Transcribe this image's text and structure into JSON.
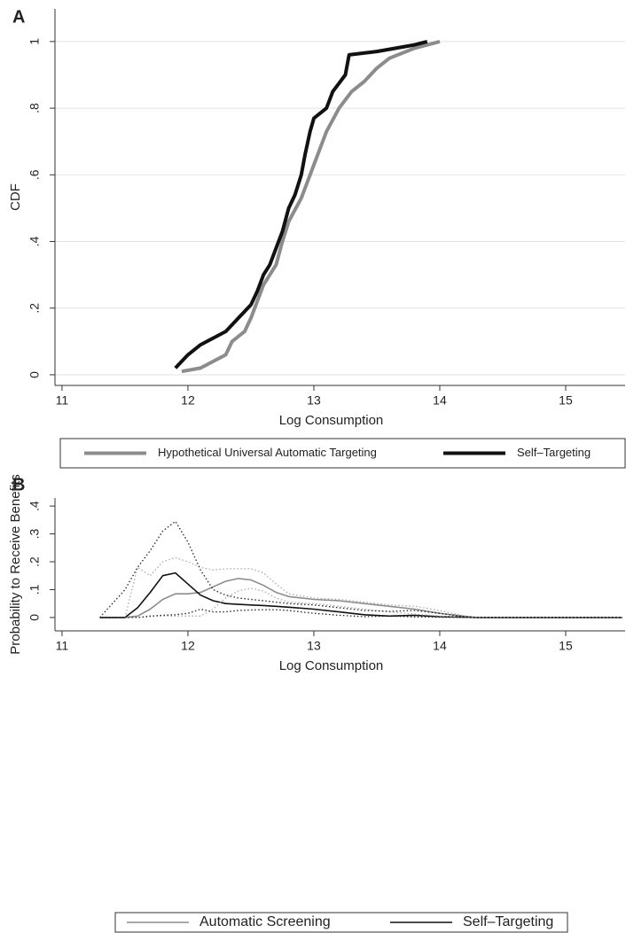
{
  "chart_data": [
    {
      "type": "line",
      "panel": "A",
      "xlabel": "Log Consumption",
      "ylabel": "CDF",
      "xlim": [
        10.944,
        15.472
      ],
      "xticks": [
        11,
        12,
        13,
        14,
        15
      ],
      "ylim": [
        -0.032,
        1.098
      ],
      "yticks": [
        0,
        {
          "value": 0.2,
          "label": ".2"
        },
        {
          "value": 0.4,
          "label": ".4"
        },
        {
          "value": 0.6,
          "label": ".6"
        },
        {
          "value": 0.8,
          "label": ".8"
        },
        1
      ],
      "grid": true,
      "series": [
        {
          "name": "Hypothetical Universal Automatic Targeting",
          "color": "#8c8c8c",
          "style": "solid",
          "x": [
            11.95,
            12.1,
            12.2,
            12.3,
            12.35,
            12.45,
            12.5,
            12.55,
            12.6,
            12.7,
            12.75,
            12.8,
            12.9,
            12.95,
            13.0,
            13.05,
            13.1,
            13.2,
            13.3,
            13.4,
            13.5,
            13.6,
            13.8,
            14.0
          ],
          "values": [
            0.01,
            0.02,
            0.04,
            0.06,
            0.1,
            0.13,
            0.17,
            0.22,
            0.27,
            0.33,
            0.4,
            0.46,
            0.53,
            0.58,
            0.63,
            0.68,
            0.73,
            0.8,
            0.85,
            0.88,
            0.92,
            0.95,
            0.98,
            1.0
          ]
        },
        {
          "name": "Self–Targeting",
          "color": "#111111",
          "style": "solid",
          "x": [
            11.9,
            12.0,
            12.1,
            12.2,
            12.3,
            12.4,
            12.5,
            12.55,
            12.6,
            12.65,
            12.7,
            12.75,
            12.8,
            12.85,
            12.9,
            12.93,
            12.97,
            13.0,
            13.1,
            13.15,
            13.25,
            13.28,
            13.5,
            13.8,
            13.9
          ],
          "values": [
            0.02,
            0.06,
            0.09,
            0.11,
            0.13,
            0.17,
            0.21,
            0.25,
            0.3,
            0.33,
            0.38,
            0.43,
            0.5,
            0.54,
            0.6,
            0.66,
            0.73,
            0.77,
            0.8,
            0.85,
            0.9,
            0.96,
            0.97,
            0.99,
            1.0
          ]
        }
      ]
    },
    {
      "type": "line",
      "panel": "B",
      "xlabel": "Log Consumption",
      "ylabel": "Probability to Receive Benefits",
      "xlim": [
        10.944,
        15.472
      ],
      "xticks": [
        11,
        12,
        13,
        14,
        15
      ],
      "ylim": [
        -0.048,
        0.429
      ],
      "yticks": [
        0,
        {
          "value": 0.1,
          "label": ".1"
        },
        {
          "value": 0.2,
          "label": ".2"
        },
        {
          "value": 0.3,
          "label": ".3"
        },
        {
          "value": 0.4,
          "label": ".4"
        }
      ],
      "grid": false,
      "x": [
        11.3,
        11.5,
        11.6,
        11.7,
        11.8,
        11.9,
        12.0,
        12.1,
        12.2,
        12.3,
        12.4,
        12.5,
        12.6,
        12.7,
        12.8,
        13.0,
        13.2,
        13.4,
        13.6,
        13.8,
        14.0,
        14.2,
        14.3,
        14.5,
        15.0,
        15.45
      ],
      "series": [
        {
          "name": "Automatic Screening",
          "color": "#8c8c8c",
          "style": "solid",
          "values": [
            0,
            0,
            0.005,
            0.03,
            0.065,
            0.085,
            0.085,
            0.09,
            0.11,
            0.13,
            0.14,
            0.135,
            0.115,
            0.09,
            0.075,
            0.065,
            0.06,
            0.05,
            0.04,
            0.03,
            0.015,
            0.004,
            0,
            0,
            0,
            0
          ]
        },
        {
          "name": "Self–Targeting",
          "color": "#111111",
          "style": "solid",
          "values": [
            0,
            0,
            0.035,
            0.09,
            0.15,
            0.16,
            0.12,
            0.08,
            0.06,
            0.05,
            0.047,
            0.045,
            0.043,
            0.04,
            0.037,
            0.03,
            0.02,
            0.01,
            0.005,
            0.008,
            0.003,
            0.001,
            0,
            0,
            0,
            0
          ]
        },
        {
          "color": "#aaaaaa",
          "style": "dotted",
          "values": [
            0,
            0,
            0.18,
            0.15,
            0.2,
            0.215,
            0.2,
            0.18,
            0.17,
            0.175,
            0.175,
            0.175,
            0.16,
            0.12,
            0.085,
            0.07,
            0.065,
            0.055,
            0.045,
            0.04,
            0.025,
            0.005,
            0,
            0,
            0,
            0
          ]
        },
        {
          "color": "#aaaaaa",
          "style": "dotted",
          "values": [
            0,
            0,
            0,
            0.003,
            0.005,
            0.005,
            0.005,
            0.005,
            0.03,
            0.07,
            0.095,
            0.105,
            0.095,
            0.07,
            0.055,
            0.05,
            0.04,
            0.03,
            0.02,
            0.012,
            0.005,
            0,
            0,
            0,
            0,
            0
          ]
        },
        {
          "color": "#222222",
          "style": "dotted",
          "values": [
            0,
            0.1,
            0.18,
            0.24,
            0.31,
            0.345,
            0.27,
            0.17,
            0.1,
            0.08,
            0.07,
            0.065,
            0.06,
            0.055,
            0.05,
            0.045,
            0.035,
            0.025,
            0.022,
            0.025,
            0.015,
            0.003,
            0,
            0,
            0,
            0
          ]
        },
        {
          "color": "#222222",
          "style": "dotted",
          "values": [
            0,
            0,
            0,
            0.005,
            0.008,
            0.01,
            0.015,
            0.03,
            0.02,
            0.02,
            0.025,
            0.027,
            0.028,
            0.028,
            0.025,
            0.015,
            0.008,
            0.003,
            0.005,
            0.002,
            0.001,
            0,
            0,
            0,
            0,
            0
          ]
        }
      ]
    }
  ]
}
